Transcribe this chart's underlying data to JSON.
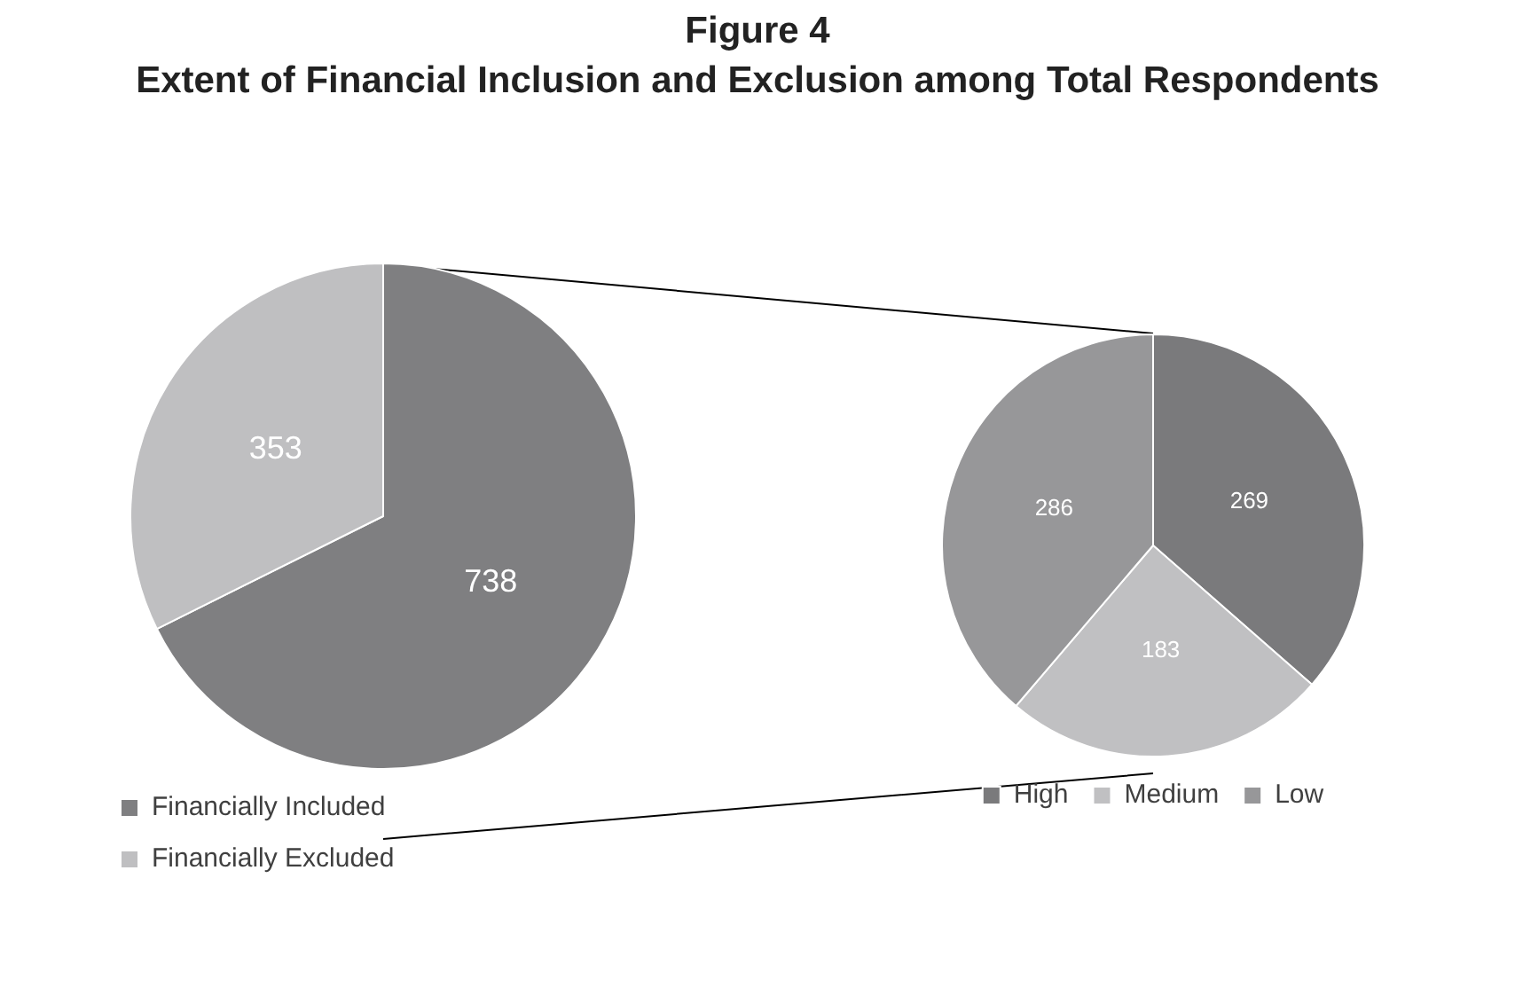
{
  "chart_data": [
    {
      "type": "pie",
      "title": "Figure 4",
      "subtitle": "Extent of Financial Inclusion and Exclusion among Total Respondents",
      "categories": [
        "Financially Included",
        "Financially Excluded"
      ],
      "values": [
        738,
        353
      ],
      "colors": [
        "#7f7f81",
        "#bfbfc1"
      ],
      "data_labels": true,
      "legend": "bottom"
    },
    {
      "type": "pie",
      "categories": [
        "High",
        "Medium",
        "Low"
      ],
      "values": [
        269,
        183,
        286
      ],
      "colors": [
        "#7a7a7c",
        "#c0c0c2",
        "#979799"
      ],
      "data_labels": true,
      "legend": "bottom"
    }
  ]
}
